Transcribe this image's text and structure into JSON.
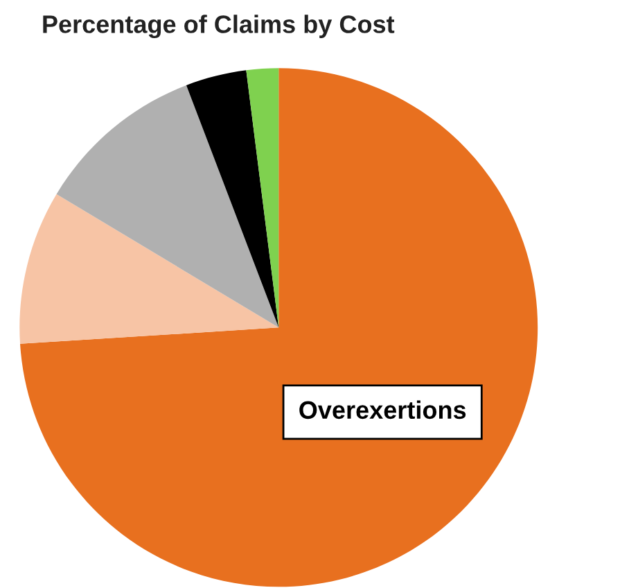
{
  "chart_data": {
    "type": "pie",
    "title": "Percentage of Claims by Cost",
    "categories": [
      "Overexertions",
      null,
      null,
      null,
      null
    ],
    "values": [
      74.0,
      9.6,
      10.6,
      3.8,
      2.0
    ],
    "colors": [
      "#e8701f",
      "#f7c4a5",
      "#b0b0b0",
      "#000000",
      "#7fd14f"
    ],
    "legend": false
  }
}
